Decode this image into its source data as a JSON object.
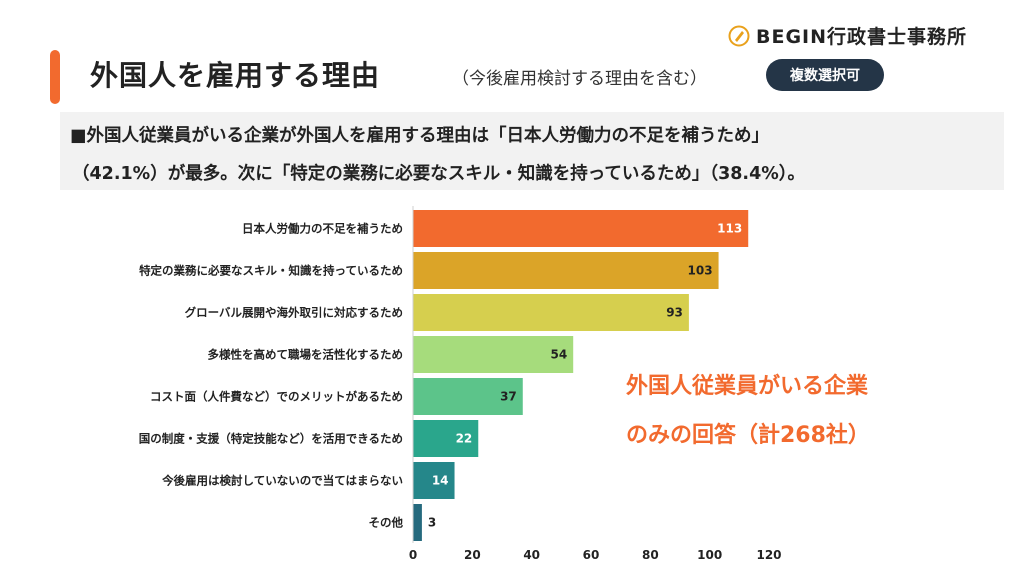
{
  "header": {
    "title": "外国人を雇用する理由",
    "subtitle": "（今後雇用検討する理由を含む）",
    "badge": "複数選択可",
    "logo_text": "BEGIN行政書士事務所"
  },
  "summary": {
    "line1": "■外国人従業員がいる企業が外国人を雇用する理由は「日本人労働力の不足を補うため」",
    "line2": "（42.1%）が最多。次に「特定の業務に必要なスキル・知識を持っているため」（38.4%）。"
  },
  "note": {
    "line1": "外国人従業員がいる企業",
    "line2": "のみの回答（計268社）"
  },
  "colors": {
    "accent": "#f26a2e",
    "badge_bg": "#243547"
  },
  "chart_data": {
    "type": "bar",
    "orientation": "horizontal",
    "categories": [
      "日本人労働力の不足を補うため",
      "特定の業務に必要なスキル・知識を持っているため",
      "グローバル展開や海外取引に対応するため",
      "多様性を高めて職場を活性化するため",
      "コスト面（人件費など）でのメリットがあるため",
      "国の制度・支援（特定技能など）を活用できるため",
      "今後雇用は検討していないので当てはまらない",
      "その他"
    ],
    "values": [
      113,
      103,
      93,
      54,
      37,
      22,
      14,
      3
    ],
    "bar_colors": [
      "#f26a2e",
      "#dba428",
      "#d6cf4e",
      "#a6dc7c",
      "#5cc48a",
      "#2aa68c",
      "#25878a",
      "#256a7e"
    ],
    "label_colors": [
      "#ffffff",
      "#222222",
      "#222222",
      "#222222",
      "#222222",
      "#ffffff",
      "#ffffff",
      "#222222"
    ],
    "xlim": [
      0,
      120
    ],
    "xticks": [
      0,
      20,
      40,
      60,
      80,
      100,
      120
    ],
    "grid": false,
    "data_labels": true
  }
}
